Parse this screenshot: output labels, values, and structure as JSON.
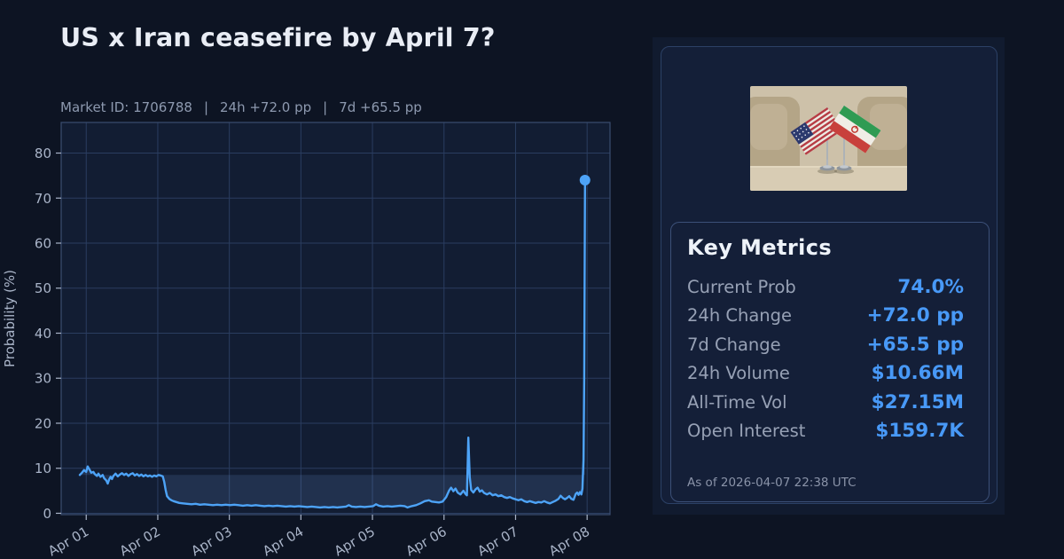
{
  "header": {
    "title": "US x Iran ceasefire by April 7?",
    "meta": {
      "market_id": "Market ID: 1706788",
      "separator": "|",
      "change_24h": "24h +72.0 pp",
      "change_7d": "7d +65.5 pp"
    }
  },
  "metrics": {
    "title": "Key Metrics",
    "rows": [
      {
        "label": "Current Prob",
        "value": "74.0%"
      },
      {
        "label": "24h Change",
        "value": "+72.0 pp"
      },
      {
        "label": "7d Change",
        "value": "+65.5 pp"
      },
      {
        "label": "24h Volume",
        "value": "$10.66M"
      },
      {
        "label": "All-Time Vol",
        "value": "$27.15M"
      },
      {
        "label": "Open Interest",
        "value": "$159.7K"
      }
    ],
    "as_of": "As of 2026-04-07 22:38 UTC"
  },
  "colors": {
    "page_bg": "#0d1423",
    "plot_bg": "#121d33",
    "grid": "#2a3d60",
    "spine": "#3b4d70",
    "tick_text": "#a9b4c8",
    "accent_line": "#4da3f7",
    "value_blue": "#4899f7",
    "fill": "rgba(125,175,245,0.14)"
  },
  "chart_data": {
    "type": "line",
    "title": "US x Iran ceasefire by April 7?",
    "xlabel": "",
    "ylabel": "Probability (%)",
    "x_tick_labels": [
      "Apr 01",
      "Apr 02",
      "Apr 03",
      "Apr 04",
      "Apr 05",
      "Apr 06",
      "Apr 07",
      "Apr 08"
    ],
    "x_tick_positions": [
      0,
      1,
      2,
      3,
      4,
      5,
      6,
      7
    ],
    "y_ticks": [
      0,
      10,
      20,
      30,
      40,
      50,
      60,
      70,
      80
    ],
    "xlim": [
      -0.35,
      7.32
    ],
    "ylim": [
      -0.3,
      86.8
    ],
    "grid": true,
    "legend": false,
    "reference_level": 8.5,
    "fill_between_line_and_reference": true,
    "last_point": {
      "x": 6.97,
      "y": 74.0,
      "marker": "circle"
    },
    "series": [
      {
        "name": "probability_pct",
        "points": [
          [
            -0.09,
            8.5
          ],
          [
            -0.06,
            9.0
          ],
          [
            -0.03,
            9.6
          ],
          [
            0.0,
            9.2
          ],
          [
            0.02,
            10.4
          ],
          [
            0.05,
            9.6
          ],
          [
            0.07,
            9.0
          ],
          [
            0.1,
            9.2
          ],
          [
            0.12,
            8.7
          ],
          [
            0.15,
            8.3
          ],
          [
            0.17,
            8.8
          ],
          [
            0.2,
            8.1
          ],
          [
            0.23,
            8.5
          ],
          [
            0.25,
            7.8
          ],
          [
            0.28,
            7.3
          ],
          [
            0.3,
            6.6
          ],
          [
            0.32,
            7.5
          ],
          [
            0.34,
            8.1
          ],
          [
            0.36,
            7.6
          ],
          [
            0.38,
            8.3
          ],
          [
            0.41,
            8.8
          ],
          [
            0.44,
            8.2
          ],
          [
            0.47,
            8.6
          ],
          [
            0.5,
            8.9
          ],
          [
            0.53,
            8.5
          ],
          [
            0.56,
            8.8
          ],
          [
            0.59,
            8.3
          ],
          [
            0.62,
            8.7
          ],
          [
            0.65,
            8.9
          ],
          [
            0.68,
            8.4
          ],
          [
            0.71,
            8.7
          ],
          [
            0.74,
            8.3
          ],
          [
            0.77,
            8.6
          ],
          [
            0.8,
            8.2
          ],
          [
            0.83,
            8.5
          ],
          [
            0.86,
            8.2
          ],
          [
            0.89,
            8.4
          ],
          [
            0.92,
            8.1
          ],
          [
            0.95,
            8.4
          ],
          [
            0.98,
            8.2
          ],
          [
            1.01,
            8.5
          ],
          [
            1.04,
            8.4
          ],
          [
            1.07,
            8.2
          ],
          [
            1.09,
            7.0
          ],
          [
            1.11,
            5.2
          ],
          [
            1.13,
            3.8
          ],
          [
            1.16,
            3.2
          ],
          [
            1.19,
            2.9
          ],
          [
            1.22,
            2.7
          ],
          [
            1.26,
            2.5
          ],
          [
            1.3,
            2.3
          ],
          [
            1.35,
            2.2
          ],
          [
            1.41,
            2.1
          ],
          [
            1.47,
            2.0
          ],
          [
            1.53,
            2.1
          ],
          [
            1.59,
            1.9
          ],
          [
            1.65,
            2.0
          ],
          [
            1.71,
            1.9
          ],
          [
            1.77,
            1.8
          ],
          [
            1.83,
            1.9
          ],
          [
            1.89,
            1.8
          ],
          [
            1.95,
            1.9
          ],
          [
            2.01,
            1.8
          ],
          [
            2.07,
            1.9
          ],
          [
            2.13,
            1.8
          ],
          [
            2.19,
            1.7
          ],
          [
            2.25,
            1.8
          ],
          [
            2.31,
            1.7
          ],
          [
            2.37,
            1.8
          ],
          [
            2.43,
            1.7
          ],
          [
            2.49,
            1.6
          ],
          [
            2.55,
            1.7
          ],
          [
            2.61,
            1.6
          ],
          [
            2.67,
            1.7
          ],
          [
            2.73,
            1.6
          ],
          [
            2.79,
            1.5
          ],
          [
            2.85,
            1.6
          ],
          [
            2.91,
            1.5
          ],
          [
            2.97,
            1.6
          ],
          [
            3.03,
            1.5
          ],
          [
            3.09,
            1.4
          ],
          [
            3.15,
            1.5
          ],
          [
            3.21,
            1.4
          ],
          [
            3.27,
            1.3
          ],
          [
            3.33,
            1.4
          ],
          [
            3.39,
            1.3
          ],
          [
            3.45,
            1.4
          ],
          [
            3.51,
            1.3
          ],
          [
            3.57,
            1.4
          ],
          [
            3.63,
            1.5
          ],
          [
            3.67,
            1.8
          ],
          [
            3.71,
            1.5
          ],
          [
            3.77,
            1.4
          ],
          [
            3.83,
            1.5
          ],
          [
            3.89,
            1.4
          ],
          [
            3.95,
            1.5
          ],
          [
            4.01,
            1.6
          ],
          [
            4.05,
            2.0
          ],
          [
            4.09,
            1.7
          ],
          [
            4.15,
            1.5
          ],
          [
            4.21,
            1.6
          ],
          [
            4.27,
            1.5
          ],
          [
            4.33,
            1.6
          ],
          [
            4.39,
            1.7
          ],
          [
            4.45,
            1.6
          ],
          [
            4.49,
            1.3
          ],
          [
            4.55,
            1.6
          ],
          [
            4.61,
            1.8
          ],
          [
            4.67,
            2.2
          ],
          [
            4.73,
            2.7
          ],
          [
            4.79,
            2.9
          ],
          [
            4.83,
            2.6
          ],
          [
            4.88,
            2.5
          ],
          [
            4.93,
            2.4
          ],
          [
            4.98,
            2.6
          ],
          [
            5.03,
            3.6
          ],
          [
            5.07,
            5.0
          ],
          [
            5.1,
            5.7
          ],
          [
            5.13,
            4.9
          ],
          [
            5.16,
            5.5
          ],
          [
            5.19,
            4.6
          ],
          [
            5.23,
            4.2
          ],
          [
            5.27,
            5.0
          ],
          [
            5.3,
            4.3
          ],
          [
            5.32,
            4.0
          ],
          [
            5.34,
            16.8
          ],
          [
            5.36,
            8.0
          ],
          [
            5.38,
            5.2
          ],
          [
            5.41,
            4.6
          ],
          [
            5.44,
            5.3
          ],
          [
            5.47,
            5.7
          ],
          [
            5.5,
            4.8
          ],
          [
            5.53,
            5.1
          ],
          [
            5.56,
            4.5
          ],
          [
            5.6,
            4.2
          ],
          [
            5.64,
            4.5
          ],
          [
            5.68,
            4.0
          ],
          [
            5.72,
            4.2
          ],
          [
            5.76,
            3.8
          ],
          [
            5.8,
            4.0
          ],
          [
            5.84,
            3.6
          ],
          [
            5.88,
            3.4
          ],
          [
            5.92,
            3.6
          ],
          [
            5.96,
            3.3
          ],
          [
            6.0,
            3.1
          ],
          [
            6.04,
            2.9
          ],
          [
            6.08,
            3.1
          ],
          [
            6.12,
            2.7
          ],
          [
            6.16,
            2.5
          ],
          [
            6.2,
            2.7
          ],
          [
            6.24,
            2.5
          ],
          [
            6.28,
            2.3
          ],
          [
            6.32,
            2.5
          ],
          [
            6.36,
            2.4
          ],
          [
            6.4,
            2.7
          ],
          [
            6.44,
            2.4
          ],
          [
            6.48,
            2.2
          ],
          [
            6.52,
            2.5
          ],
          [
            6.56,
            2.8
          ],
          [
            6.6,
            3.2
          ],
          [
            6.63,
            3.9
          ],
          [
            6.66,
            3.4
          ],
          [
            6.69,
            3.1
          ],
          [
            6.72,
            3.4
          ],
          [
            6.75,
            3.8
          ],
          [
            6.78,
            3.2
          ],
          [
            6.81,
            3.0
          ],
          [
            6.84,
            4.3
          ],
          [
            6.86,
            4.6
          ],
          [
            6.88,
            4.1
          ],
          [
            6.9,
            4.7
          ],
          [
            6.92,
            4.2
          ],
          [
            6.935,
            5.5
          ],
          [
            6.95,
            12.0
          ],
          [
            6.96,
            30.0
          ],
          [
            6.97,
            74.0
          ]
        ]
      }
    ]
  }
}
